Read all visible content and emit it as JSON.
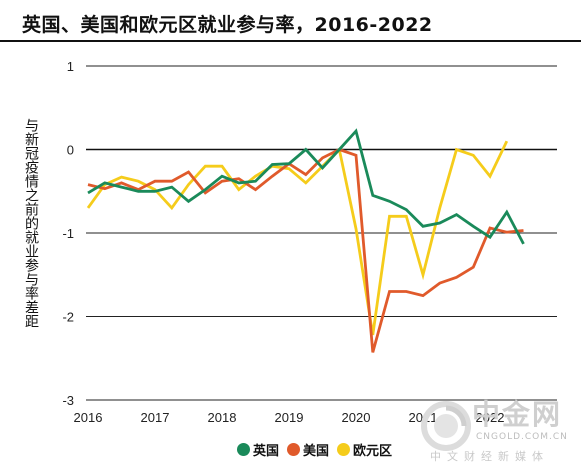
{
  "title": "英国、美国和欧元区就业参与率，2016-2022",
  "chart_data": {
    "type": "line",
    "title": "英国、美国和欧元区就业参与率，2016-2022",
    "xlabel": "",
    "ylabel": "与新冠疫情之前的就业参与率差距",
    "x_ticks": [
      "2016",
      "2017",
      "2018",
      "2019",
      "2020",
      "2021",
      "2022"
    ],
    "y_ticks": [
      "1",
      "0",
      "-1",
      "-2",
      "-3"
    ],
    "xlim": [
      2016.0,
      2023.0
    ],
    "ylim": [
      -3,
      1
    ],
    "grid": "horizontal",
    "legend_position": "bottom-center",
    "x_period": "quarterly",
    "series": [
      {
        "name": "英国",
        "color": "#1a8a5a",
        "x": [
          2016.0,
          2016.25,
          2016.5,
          2016.75,
          2017.0,
          2017.25,
          2017.5,
          2017.75,
          2018.0,
          2018.25,
          2018.5,
          2018.75,
          2019.0,
          2019.25,
          2019.5,
          2019.75,
          2020.0,
          2020.25,
          2020.5,
          2020.75,
          2021.0,
          2021.25,
          2021.5,
          2021.75,
          2022.0,
          2022.25,
          2022.5
        ],
        "values": [
          -0.52,
          -0.4,
          -0.45,
          -0.5,
          -0.5,
          -0.45,
          -0.62,
          -0.48,
          -0.32,
          -0.4,
          -0.38,
          -0.18,
          -0.17,
          0.0,
          -0.22,
          0.0,
          0.22,
          -0.55,
          -0.62,
          -0.72,
          -0.92,
          -0.88,
          -0.78,
          -0.92,
          -1.05,
          -0.75,
          -1.13
        ]
      },
      {
        "name": "美国",
        "color": "#e05a2b",
        "x": [
          2016.0,
          2016.25,
          2016.5,
          2016.75,
          2017.0,
          2017.25,
          2017.5,
          2017.75,
          2018.0,
          2018.25,
          2018.5,
          2018.75,
          2019.0,
          2019.25,
          2019.5,
          2019.75,
          2020.0,
          2020.25,
          2020.5,
          2020.75,
          2021.0,
          2021.25,
          2021.5,
          2021.75,
          2022.0,
          2022.25,
          2022.5
        ],
        "values": [
          -0.42,
          -0.47,
          -0.4,
          -0.48,
          -0.38,
          -0.38,
          -0.27,
          -0.52,
          -0.38,
          -0.35,
          -0.48,
          -0.32,
          -0.17,
          -0.3,
          -0.1,
          0.0,
          -0.07,
          -2.43,
          -1.7,
          -1.7,
          -1.75,
          -1.6,
          -1.53,
          -1.41,
          -0.94,
          -0.99,
          -0.97
        ]
      },
      {
        "name": "欧元区",
        "color": "#f5cc1b",
        "x": [
          2016.0,
          2016.25,
          2016.5,
          2016.75,
          2017.0,
          2017.25,
          2017.5,
          2017.75,
          2018.0,
          2018.25,
          2018.5,
          2018.75,
          2019.0,
          2019.25,
          2019.5,
          2019.75,
          2020.0,
          2020.25,
          2020.5,
          2020.75,
          2021.0,
          2021.25,
          2021.5,
          2021.75,
          2022.0,
          2022.25
        ],
        "values": [
          -0.7,
          -0.42,
          -0.33,
          -0.38,
          -0.48,
          -0.7,
          -0.42,
          -0.2,
          -0.2,
          -0.48,
          -0.32,
          -0.2,
          -0.23,
          -0.4,
          -0.2,
          0.0,
          -0.95,
          -2.22,
          -0.8,
          -0.8,
          -1.5,
          -0.7,
          0.0,
          -0.07,
          -0.32,
          0.1
        ]
      }
    ]
  },
  "legend": {
    "uk": "英国",
    "us": "美国",
    "ea": "欧元区"
  },
  "watermark": {
    "brand": "中金网",
    "url": "CNGOLD.COM.CN",
    "tagline": "中文财经新媒体",
    "color": "#c8c8c8",
    "logo_color": "#d8d8d8"
  }
}
